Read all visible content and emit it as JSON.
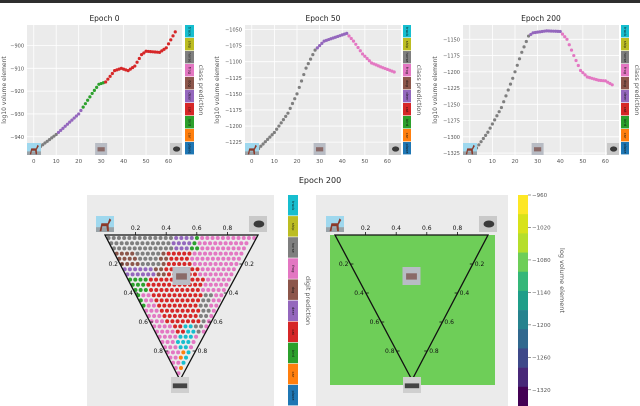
{
  "classes": [
    "truck",
    "ship",
    "horse",
    "frog",
    "dog",
    "deer",
    "cat",
    "bird",
    "car",
    "plane"
  ],
  "class_colors": {
    "truck": "#17becf",
    "ship": "#bcbd22",
    "horse": "#7f7f7f",
    "frog": "#e377c2",
    "dog": "#8c564b",
    "deer": "#9467bd",
    "cat": "#d62728",
    "bird": "#2ca02c",
    "car": "#ff7f0e",
    "plane": "#1f77b4"
  },
  "chart_data": [
    {
      "type": "scatter",
      "title": "Epoch 0",
      "xlabel": "",
      "ylabel": "log10 volume element",
      "colorbar_label": "class prediction",
      "xlim": [
        -3,
        66
      ],
      "xticks": [
        0,
        10,
        20,
        30,
        40,
        50,
        60
      ],
      "ylim": [
        -948,
        -891
      ],
      "yticks": [
        -900,
        -910,
        -920,
        -930,
        -940
      ],
      "x_range": [
        2,
        63
      ],
      "y_knots": [
        [
          2,
          -945
        ],
        [
          10,
          -939
        ],
        [
          20,
          -930
        ],
        [
          26,
          -921
        ],
        [
          29,
          -917
        ],
        [
          32,
          -916
        ],
        [
          36,
          -911
        ],
        [
          39,
          -910
        ],
        [
          42,
          -911
        ],
        [
          45,
          -909
        ],
        [
          48,
          -904
        ],
        [
          50,
          -902.5
        ],
        [
          56,
          -903
        ],
        [
          59,
          -901
        ],
        [
          63,
          -894
        ]
      ],
      "class_segments": [
        [
          2,
          10,
          "horse"
        ],
        [
          11,
          21,
          "deer"
        ],
        [
          22,
          31,
          "bird"
        ],
        [
          32,
          63,
          "cat"
        ]
      ]
    },
    {
      "type": "scatter",
      "title": "Epoch 50",
      "xlabel": "",
      "ylabel": "log10 volume element",
      "colorbar_label": "class prediction",
      "xlim": [
        -3,
        66
      ],
      "xticks": [
        0,
        10,
        20,
        30,
        40,
        50,
        60
      ],
      "ylim": [
        -1245,
        -1043
      ],
      "yticks": [
        -1050,
        -1075,
        -1100,
        -1125,
        -1150,
        -1175,
        -1200,
        -1225
      ],
      "x_range": [
        3,
        63
      ],
      "y_knots": [
        [
          3,
          -1235
        ],
        [
          10,
          -1210
        ],
        [
          16,
          -1180
        ],
        [
          20,
          -1150
        ],
        [
          24,
          -1110
        ],
        [
          28,
          -1082
        ],
        [
          32,
          -1068
        ],
        [
          37,
          -1062
        ],
        [
          42,
          -1056
        ],
        [
          45,
          -1068
        ],
        [
          49,
          -1088
        ],
        [
          53,
          -1102
        ],
        [
          57,
          -1108
        ],
        [
          63,
          -1116
        ]
      ],
      "class_segments": [
        [
          3,
          28,
          "horse"
        ],
        [
          29,
          42,
          "deer"
        ],
        [
          43,
          63,
          "frog"
        ]
      ]
    },
    {
      "type": "scatter",
      "title": "Epoch 200",
      "xlabel": "",
      "ylabel": "log10 volume element",
      "colorbar_label": "class prediction",
      "xlim": [
        -3,
        66
      ],
      "xticks": [
        0,
        10,
        20,
        30,
        40,
        50,
        60
      ],
      "ylim": [
        -1328,
        -1128
      ],
      "yticks": [
        -1150,
        -1175,
        -1200,
        -1225,
        -1250,
        -1275,
        -1300,
        -1325
      ],
      "x_range": [
        2,
        63
      ],
      "y_knots": [
        [
          2,
          -1322
        ],
        [
          8,
          -1293
        ],
        [
          14,
          -1255
        ],
        [
          19,
          -1210
        ],
        [
          23,
          -1170
        ],
        [
          26,
          -1145
        ],
        [
          28,
          -1140
        ],
        [
          34,
          -1137
        ],
        [
          40,
          -1138
        ],
        [
          43,
          -1150
        ],
        [
          46,
          -1175
        ],
        [
          49,
          -1198
        ],
        [
          52,
          -1208
        ],
        [
          57,
          -1213
        ],
        [
          60,
          -1214
        ],
        [
          63,
          -1220
        ]
      ],
      "class_segments": [
        [
          2,
          26,
          "horse"
        ],
        [
          27,
          40,
          "deer"
        ],
        [
          41,
          63,
          "frog"
        ]
      ]
    },
    {
      "type": "heatmap",
      "title": "Epoch 200",
      "subtype": "ternary class prediction",
      "colorbar_label": "digit prediction",
      "edge_ticks": [
        "0.2",
        "0.4",
        "0.6",
        "0.8"
      ],
      "class_rows": [
        "hhhhhhhhhdddBffffffff",
        "ggghhhhgccccfffffffff",
        "dddddggccccccfffffff",
        "BBBcccccccccccfffff",
        "BffcccccccccchhfF",
        "fffcccccccccchhf",
        "fffffcccttthhf",
        "ffffftttttff",
        "fffffoottf",
        "fooo"
      ],
      "row_legend": {
        "h": "horse",
        "d": "deer",
        "B": "bird",
        "f": "frog",
        "g": "dog",
        "c": "cat",
        "t": "truck",
        "o": "car",
        "F": "frog"
      }
    },
    {
      "type": "heatmap",
      "title": "",
      "subtype": "ternary contour",
      "colorbar_label": "log volume element",
      "edge_ticks": [
        "0.2",
        "0.4",
        "0.6",
        "0.8"
      ],
      "clim": [
        -1350,
        -960
      ],
      "colorbar_ticks": [
        "-960",
        "-1020",
        "-1080",
        "-1140",
        "-1200",
        "-1260",
        "-1320"
      ]
    }
  ],
  "bottom_title": "Epoch 200"
}
